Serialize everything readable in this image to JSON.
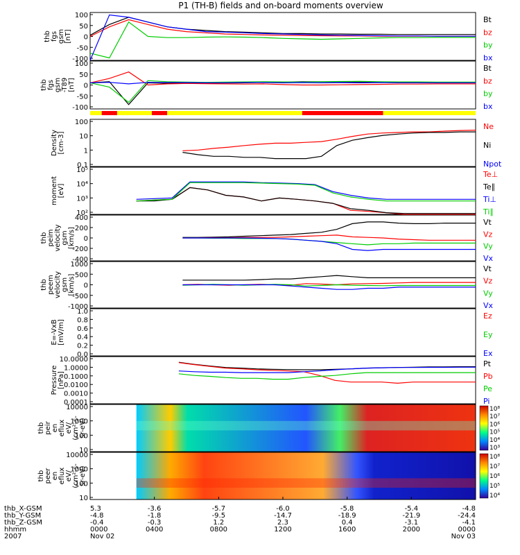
{
  "title": "P1 (TH-B) fields and on-board moments overview",
  "colors": {
    "black": "#000000",
    "red": "#ff0000",
    "green": "#00cc00",
    "blue": "#0000ff",
    "yellow": "#ffff00",
    "state_red": "#ff0000",
    "state_yellow": "#ffff00"
  },
  "chart_data": [
    {
      "type": "line",
      "id": "fgs",
      "ylabel": [
        "thb",
        "fgs",
        "gsm",
        "[nT]"
      ],
      "yticks": [
        "100",
        "50",
        "0",
        "-50",
        "-100"
      ],
      "ylim": [
        -100,
        100
      ],
      "series": [
        {
          "name": "Bt",
          "color": "black",
          "values": [
            5,
            50,
            80,
            60,
            40,
            30,
            25,
            20,
            18,
            15,
            12,
            12,
            10,
            10,
            9,
            9,
            8,
            8,
            8,
            8,
            8
          ]
        },
        {
          "name": "bz",
          "color": "red",
          "values": [
            0,
            40,
            70,
            50,
            30,
            20,
            15,
            10,
            8,
            6,
            5,
            4,
            3,
            2,
            2,
            1,
            1,
            1,
            1,
            1,
            1
          ]
        },
        {
          "name": "by",
          "color": "green",
          "values": [
            -70,
            -90,
            60,
            0,
            -5,
            -5,
            -3,
            -2,
            -3,
            -5,
            -8,
            -10,
            -12,
            -10,
            -8,
            -6,
            -5,
            -5,
            -4,
            -4,
            -4
          ]
        },
        {
          "name": "bx",
          "color": "blue",
          "values": [
            -100,
            90,
            80,
            60,
            40,
            30,
            20,
            18,
            15,
            12,
            10,
            8,
            6,
            5,
            4,
            3,
            2,
            2,
            1,
            1,
            1
          ]
        }
      ]
    },
    {
      "type": "line",
      "id": "fgs-t89",
      "ylabel": [
        "thb",
        "fgs",
        "gsm",
        "-T89",
        "[nT]"
      ],
      "yticks": [
        "100",
        "50",
        "0",
        "-50",
        "-100"
      ],
      "ylim": [
        -120,
        100
      ],
      "series": [
        {
          "name": "Bt",
          "color": "black",
          "values": [
            0,
            5,
            -100,
            0,
            -2,
            -3,
            -2,
            -1,
            0,
            2,
            3,
            5,
            5,
            4,
            3,
            3,
            2,
            2,
            2,
            2,
            2
          ]
        },
        {
          "name": "bz",
          "color": "red",
          "values": [
            0,
            20,
            50,
            -10,
            -5,
            -3,
            -4,
            -5,
            -6,
            -5,
            -8,
            -10,
            -10,
            -9,
            -8,
            -7,
            -6,
            -6,
            -5,
            -5,
            -5
          ]
        },
        {
          "name": "by",
          "color": "green",
          "values": [
            0,
            -20,
            -90,
            10,
            5,
            3,
            2,
            3,
            4,
            5,
            4,
            3,
            5,
            6,
            7,
            5,
            4,
            4,
            3,
            3,
            3
          ]
        },
        {
          "name": "bx",
          "color": "blue",
          "values": [
            0,
            2,
            -5,
            2,
            1,
            1,
            0,
            0,
            1,
            1,
            0,
            1,
            0,
            1,
            0,
            1,
            0,
            0,
            0,
            0,
            0
          ]
        }
      ]
    },
    {
      "type": "line",
      "id": "density",
      "ylabel": [
        "Density",
        "[cm-3]"
      ],
      "scale": "log",
      "yticks": [
        "100",
        "10",
        "1",
        "0.1"
      ],
      "ylim": [
        0.05,
        200
      ],
      "start": 0.24,
      "series": [
        {
          "name": "Ne",
          "color": "red",
          "values": [
            0.8,
            0.9,
            1.2,
            1.5,
            2,
            2.5,
            3,
            3,
            3.5,
            4,
            6,
            10,
            15,
            18,
            20,
            22,
            22,
            25,
            28,
            30
          ]
        },
        {
          "name": "Ni",
          "color": "black",
          "values": [
            0.6,
            0.4,
            0.3,
            0.3,
            0.25,
            0.25,
            0.2,
            0.2,
            0.2,
            0.3,
            2,
            5,
            8,
            12,
            15,
            18,
            20,
            20,
            22,
            22
          ]
        },
        {
          "name": "Npot",
          "color": "blue",
          "values": []
        }
      ]
    },
    {
      "type": "line",
      "id": "temp",
      "ylabel": [
        "moment",
        "[eV]"
      ],
      "scale": "log",
      "yticks": [
        "10⁵",
        "10⁴",
        "10³",
        "10²"
      ],
      "ylim": [
        30,
        100000
      ],
      "start": 0.12,
      "series": [
        {
          "name": "Te⊥",
          "color": "red",
          "values": [
            300,
            350,
            400,
            3000,
            2000,
            800,
            600,
            300,
            500,
            400,
            300,
            200,
            60,
            50,
            40,
            30,
            30,
            30,
            30,
            30
          ]
        },
        {
          "name": "Te∥",
          "color": "black",
          "values": [
            300,
            300,
            400,
            3000,
            2000,
            800,
            600,
            300,
            500,
            400,
            300,
            200,
            80,
            60,
            40,
            35,
            35,
            35,
            35,
            35
          ]
        },
        {
          "name": "Ti⊥",
          "color": "blue",
          "values": [
            400,
            450,
            500,
            8000,
            8000,
            8000,
            8000,
            7000,
            6500,
            6000,
            5000,
            1500,
            800,
            500,
            400,
            400,
            400,
            400,
            400,
            400
          ]
        },
        {
          "name": "Ti∥",
          "color": "green",
          "values": [
            300,
            350,
            400,
            7000,
            7000,
            7000,
            7000,
            6500,
            6000,
            5500,
            4500,
            1200,
            600,
            400,
            300,
            300,
            300,
            300,
            300,
            300
          ]
        }
      ]
    },
    {
      "type": "line",
      "id": "peim-velocity",
      "ylabel": [
        "thb",
        "peim",
        "velocity",
        "gsm",
        "[km/s]"
      ],
      "yticks": [
        "400",
        "200",
        "0",
        "-200",
        "-400"
      ],
      "ylim": [
        -400,
        400
      ],
      "start": 0.24,
      "series": [
        {
          "name": "Vt",
          "color": "black",
          "values": [
            10,
            10,
            15,
            20,
            30,
            40,
            50,
            60,
            80,
            100,
            150,
            250,
            280,
            280,
            260,
            250,
            250,
            260,
            260,
            260
          ]
        },
        {
          "name": "Vz",
          "color": "red",
          "values": [
            0,
            0,
            5,
            5,
            10,
            10,
            10,
            20,
            30,
            40,
            50,
            20,
            10,
            0,
            -20,
            -30,
            -40,
            -40,
            -40,
            -40
          ]
        },
        {
          "name": "Vy",
          "color": "green",
          "values": [
            0,
            0,
            -5,
            -5,
            -10,
            -10,
            -10,
            -20,
            -40,
            -60,
            -80,
            -100,
            -120,
            -100,
            -100,
            -90,
            -90,
            -90,
            -90,
            -90
          ]
        },
        {
          "name": "Vx",
          "color": "blue",
          "values": [
            0,
            0,
            0,
            0,
            0,
            -5,
            -10,
            -20,
            -40,
            -60,
            -100,
            -200,
            -220,
            -200,
            -200,
            -200,
            -200,
            -200,
            -200,
            -200
          ]
        }
      ]
    },
    {
      "type": "line",
      "id": "peem-velocity",
      "ylabel": [
        "thb",
        "peem",
        "velocity",
        "gsm",
        "[km/s]"
      ],
      "yticks": [
        "1000",
        "500",
        "0",
        "-500",
        "-1000"
      ],
      "ylim": [
        -1000,
        1000
      ],
      "start": 0.24,
      "series": [
        {
          "name": "Vt",
          "color": "black",
          "values": [
            200,
            200,
            200,
            200,
            200,
            220,
            250,
            250,
            300,
            350,
            400,
            350,
            300,
            300,
            300,
            300,
            300,
            300,
            300,
            300
          ]
        },
        {
          "name": "Vz",
          "color": "red",
          "values": [
            0,
            20,
            0,
            -20,
            0,
            20,
            0,
            -20,
            50,
            30,
            0,
            40,
            50,
            60,
            80,
            100,
            100,
            100,
            100,
            100
          ]
        },
        {
          "name": "Vy",
          "color": "green",
          "values": [
            -20,
            0,
            20,
            0,
            -20,
            0,
            20,
            0,
            -50,
            -30,
            0,
            -20,
            -30,
            -40,
            -30,
            -30,
            -30,
            -30,
            -30,
            -30
          ]
        },
        {
          "name": "Vx",
          "color": "blue",
          "values": [
            0,
            0,
            0,
            0,
            0,
            0,
            0,
            -50,
            -100,
            -150,
            -200,
            -200,
            -150,
            -150,
            -100,
            -100,
            -100,
            -100,
            -100,
            -100
          ]
        }
      ]
    },
    {
      "type": "line",
      "id": "efield",
      "ylabel": [
        "E=-VxB",
        "[mV/m]"
      ],
      "yticks": [
        "1.0",
        "0.8",
        "0.6",
        "0.4",
        "0.2",
        "0.0"
      ],
      "ylim": [
        0,
        1
      ],
      "series": [
        {
          "name": "Ez",
          "color": "red",
          "values": []
        },
        {
          "name": "Ey",
          "color": "green",
          "values": []
        },
        {
          "name": "Ex",
          "color": "blue",
          "values": []
        }
      ]
    },
    {
      "type": "line",
      "id": "pressure",
      "ylabel": [
        "Pressure",
        "[nPa]"
      ],
      "scale": "log",
      "yticks": [
        "10.0000",
        "1.0000",
        "0.1000",
        "0.0100",
        "0.0010",
        "0.0001"
      ],
      "ylim": [
        0.0001,
        10
      ],
      "start": 0.23,
      "series": [
        {
          "name": "Pt",
          "color": "black",
          "values": [
            2.5,
            1.5,
            1.0,
            0.7,
            0.6,
            0.5,
            0.45,
            0.42,
            0.4,
            0.4,
            0.45,
            0.5,
            0.6,
            0.65,
            0.7,
            0.75,
            0.8,
            0.8,
            0.85,
            0.85
          ]
        },
        {
          "name": "Pb",
          "color": "red",
          "values": [
            2.3,
            1.4,
            0.9,
            0.6,
            0.5,
            0.4,
            0.35,
            0.3,
            0.25,
            0.1,
            0.03,
            0.02,
            0.02,
            0.02,
            0.015,
            0.02,
            0.02,
            0.02,
            0.02,
            0.02
          ]
        },
        {
          "name": "Pe",
          "color": "green",
          "values": [
            0.15,
            0.1,
            0.08,
            0.06,
            0.05,
            0.05,
            0.04,
            0.04,
            0.06,
            0.08,
            0.1,
            0.15,
            0.2,
            0.2,
            0.2,
            0.2,
            0.2,
            0.2,
            0.2,
            0.2
          ]
        },
        {
          "name": "Pi",
          "color": "blue",
          "values": [
            0.3,
            0.25,
            0.22,
            0.22,
            0.2,
            0.2,
            0.2,
            0.2,
            0.25,
            0.3,
            0.4,
            0.5,
            0.6,
            0.65,
            0.7,
            0.7,
            0.72,
            0.72,
            0.75,
            0.75
          ]
        }
      ]
    },
    {
      "type": "heatmap",
      "id": "peir",
      "ylabel": [
        "thb",
        "peir",
        "en",
        "eflux",
        "eV/",
        "(cm²-s-",
        "sr-eV)"
      ],
      "yticks": [
        "10000",
        "1000",
        "100",
        "10"
      ],
      "colorbar": {
        "ticks": [
          "10⁸",
          "10⁷",
          "10⁶",
          "10⁵",
          "10⁴",
          "10³"
        ]
      }
    },
    {
      "type": "heatmap",
      "id": "peer",
      "ylabel": [
        "thb",
        "peer",
        "en",
        "eflux",
        "eV/",
        "(cm²-s-",
        "sr-eV)"
      ],
      "yticks": [
        "10000",
        "1000",
        "100",
        "10"
      ],
      "colorbar": {
        "ticks": [
          "10⁸",
          "10⁷",
          "10⁶",
          "10⁵",
          "10⁴"
        ]
      }
    }
  ],
  "state_bar": {
    "segments": [
      {
        "from": 0.0,
        "to": 0.03,
        "color": "yellow"
      },
      {
        "from": 0.03,
        "to": 0.07,
        "color": "red"
      },
      {
        "from": 0.07,
        "to": 0.16,
        "color": "yellow"
      },
      {
        "from": 0.16,
        "to": 0.2,
        "color": "red"
      },
      {
        "from": 0.2,
        "to": 0.55,
        "color": "yellow"
      },
      {
        "from": 0.55,
        "to": 0.76,
        "color": "red"
      },
      {
        "from": 0.76,
        "to": 1.0,
        "color": "yellow"
      }
    ]
  },
  "ephemeris": {
    "row_labels": [
      "thb_X-GSM",
      "thb_Y-GSM",
      "thb_Z-GSM",
      "hhmm",
      "2007"
    ],
    "columns": [
      [
        "5.3",
        "-4.8",
        "-0.4",
        "0000",
        "Nov 02"
      ],
      [
        "-3.6",
        "-1.8",
        "-0.3",
        "0400",
        ""
      ],
      [
        "-5.7",
        "-9.5",
        "1.2",
        "0800",
        ""
      ],
      [
        "-6.0",
        "-14.7",
        "2.3",
        "1200",
        ""
      ],
      [
        "-5.8",
        "-18.9",
        "0.4",
        "1600",
        ""
      ],
      [
        "-5.4",
        "-21.9",
        "-3.1",
        "2000",
        ""
      ],
      [
        "-4.8",
        "-24.4",
        "-4.1",
        "0000",
        "Nov 03"
      ]
    ]
  }
}
